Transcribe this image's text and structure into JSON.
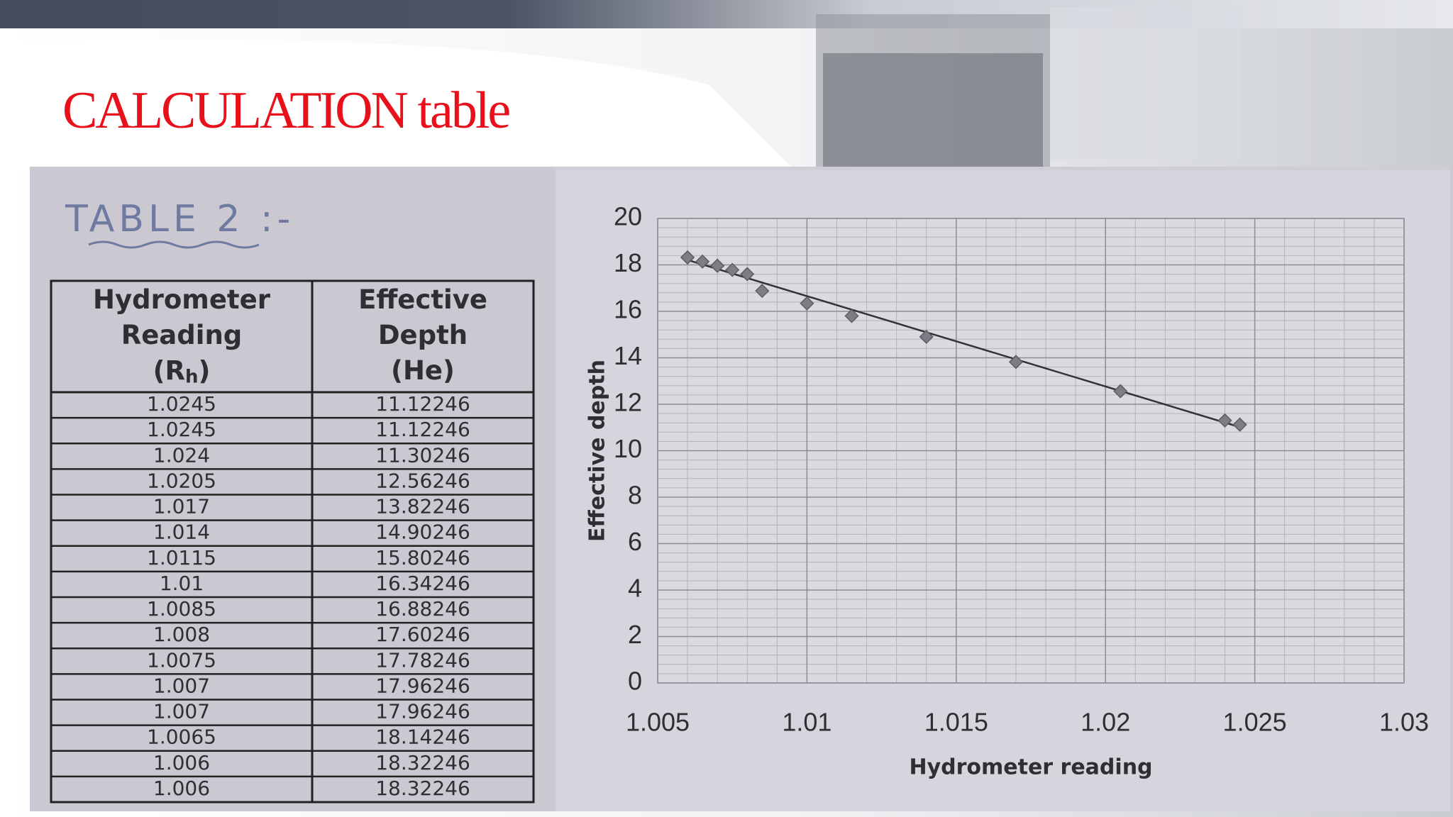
{
  "header": {
    "title": "CALCULATION table"
  },
  "table": {
    "caption": "TABLE 2 :-",
    "headers": [
      {
        "lines": [
          "Hydrometer",
          "Reading"
        ],
        "unit": [
          "(R",
          "h",
          ")"
        ]
      },
      {
        "lines": [
          "Effective",
          "Depth",
          "(He)"
        ]
      }
    ],
    "rows": [
      [
        1.0245,
        11.12246
      ],
      [
        1.0245,
        11.12246
      ],
      [
        1.024,
        11.30246
      ],
      [
        1.0205,
        12.56246
      ],
      [
        1.017,
        13.82246
      ],
      [
        1.014,
        14.90246
      ],
      [
        1.0115,
        15.80246
      ],
      [
        1.01,
        16.34246
      ],
      [
        1.0085,
        16.88246
      ],
      [
        1.008,
        17.60246
      ],
      [
        1.0075,
        17.78246
      ],
      [
        1.007,
        17.96246
      ],
      [
        1.007,
        17.96246
      ],
      [
        1.0065,
        18.14246
      ],
      [
        1.006,
        18.32246
      ],
      [
        1.006,
        18.32246
      ]
    ]
  },
  "chart_data": {
    "type": "scatter",
    "x_label": "Hydrometer reading",
    "y_label": "Effective depth",
    "x": [
      1.0245,
      1.0245,
      1.024,
      1.0205,
      1.017,
      1.014,
      1.0115,
      1.01,
      1.0085,
      1.008,
      1.0075,
      1.007,
      1.007,
      1.0065,
      1.006,
      1.006
    ],
    "values": [
      11.12246,
      11.12246,
      11.30246,
      12.56246,
      13.82246,
      14.90246,
      15.80246,
      16.34246,
      16.88246,
      17.60246,
      17.78246,
      17.96246,
      17.96246,
      18.14246,
      18.32246,
      18.32246
    ],
    "color": "#7d7d85",
    "trendline": true,
    "xlim": [
      1.005,
      1.03
    ],
    "xticks": [
      1.005,
      1.01,
      1.015,
      1.02,
      1.025,
      1.03
    ],
    "ylim": [
      0,
      20
    ],
    "yticks": [
      0,
      2,
      4,
      6,
      8,
      10,
      12,
      14,
      16,
      18,
      20
    ],
    "grid": true
  }
}
